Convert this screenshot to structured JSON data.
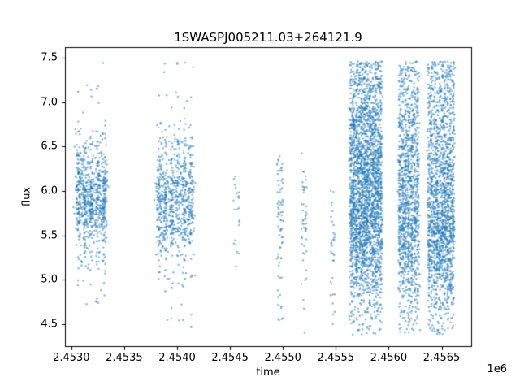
{
  "figure": {
    "background": "#ffffff"
  },
  "chart_data": {
    "type": "scatter",
    "title": "1SWASPJ005211.03+264121.9",
    "xlabel": "time",
    "ylabel": "flux",
    "x_offset_text": "1e6",
    "xlim": [
      2452940,
      2456780
    ],
    "ylim": [
      4.25,
      7.62
    ],
    "xticks": [
      2453000,
      2453500,
      2454000,
      2454500,
      2455000,
      2455500,
      2456000,
      2456500
    ],
    "xtick_labels": [
      "2.4530",
      "2.4535",
      "2.4540",
      "2.4545",
      "2.4550",
      "2.4555",
      "2.4560",
      "2.4565"
    ],
    "yticks": [
      4.5,
      5.0,
      5.5,
      6.0,
      6.5,
      7.0,
      7.5
    ],
    "ytick_labels": [
      "4.5",
      "5.0",
      "5.5",
      "6.0",
      "6.5",
      "7.0",
      "7.5"
    ],
    "marker_color": "#1f77b4",
    "marker_alpha": 0.55,
    "legend": "none",
    "grid": false,
    "clusters": [
      {
        "t": 2453190,
        "half_width": 120,
        "stripes": 5,
        "groups": [
          {
            "kind": "gauss",
            "n": 620,
            "mean": 5.92,
            "std": 0.26
          },
          {
            "kind": "uniform",
            "n": 120,
            "min": 5.15,
            "max": 6.7
          },
          {
            "kind": "uniform",
            "n": 70,
            "min": 4.6,
            "max": 7.45
          }
        ]
      },
      {
        "t": 2453980,
        "half_width": 150,
        "stripes": 6,
        "groups": [
          {
            "kind": "gauss",
            "n": 620,
            "mean": 5.9,
            "std": 0.3
          },
          {
            "kind": "uniform",
            "n": 110,
            "min": 5.0,
            "max": 6.8
          },
          {
            "kind": "uniform",
            "n": 80,
            "min": 4.4,
            "max": 7.45
          }
        ]
      },
      {
        "t": 2454560,
        "half_width": 35,
        "stripes": 1,
        "groups": [
          {
            "kind": "gauss",
            "n": 14,
            "mean": 5.9,
            "std": 0.28
          },
          {
            "kind": "uniform",
            "n": 8,
            "min": 5.0,
            "max": 6.45
          }
        ]
      },
      {
        "t": 2454975,
        "half_width": 30,
        "stripes": 1,
        "groups": [
          {
            "kind": "gauss",
            "n": 42,
            "mean": 5.85,
            "std": 0.25
          },
          {
            "kind": "uniform",
            "n": 34,
            "min": 4.45,
            "max": 6.45
          }
        ]
      },
      {
        "t": 2455200,
        "half_width": 25,
        "stripes": 1,
        "groups": [
          {
            "kind": "gauss",
            "n": 26,
            "mean": 5.7,
            "std": 0.33
          },
          {
            "kind": "uniform",
            "n": 24,
            "min": 4.38,
            "max": 6.45
          }
        ]
      },
      {
        "t": 2455470,
        "half_width": 20,
        "stripes": 1,
        "groups": [
          {
            "kind": "gauss",
            "n": 18,
            "mean": 5.4,
            "std": 0.33
          },
          {
            "kind": "uniform",
            "n": 15,
            "min": 4.38,
            "max": 6.0
          }
        ]
      },
      {
        "t": 2455785,
        "half_width": 140,
        "stripes": 12,
        "groups": [
          {
            "kind": "gauss",
            "n": 1350,
            "mean": 6.2,
            "std": 0.5
          },
          {
            "kind": "gauss",
            "n": 650,
            "mean": 5.45,
            "std": 0.35
          },
          {
            "kind": "uniform",
            "n": 520,
            "min": 4.38,
            "max": 7.46
          },
          {
            "kind": "uniform",
            "n": 180,
            "min": 6.7,
            "max": 7.46
          }
        ]
      },
      {
        "t": 2456190,
        "half_width": 85,
        "stripes": 7,
        "groups": [
          {
            "kind": "gauss",
            "n": 620,
            "mean": 6.1,
            "std": 0.5
          },
          {
            "kind": "gauss",
            "n": 260,
            "mean": 5.35,
            "std": 0.3
          },
          {
            "kind": "uniform",
            "n": 300,
            "min": 4.38,
            "max": 7.46
          },
          {
            "kind": "uniform",
            "n": 90,
            "min": 6.7,
            "max": 7.46
          }
        ]
      },
      {
        "t": 2456495,
        "half_width": 115,
        "stripes": 10,
        "groups": [
          {
            "kind": "gauss",
            "n": 900,
            "mean": 6.0,
            "std": 0.55
          },
          {
            "kind": "gauss",
            "n": 330,
            "mean": 5.3,
            "std": 0.3
          },
          {
            "kind": "uniform",
            "n": 430,
            "min": 4.38,
            "max": 7.46
          },
          {
            "kind": "uniform",
            "n": 140,
            "min": 6.7,
            "max": 7.46
          }
        ]
      }
    ]
  }
}
